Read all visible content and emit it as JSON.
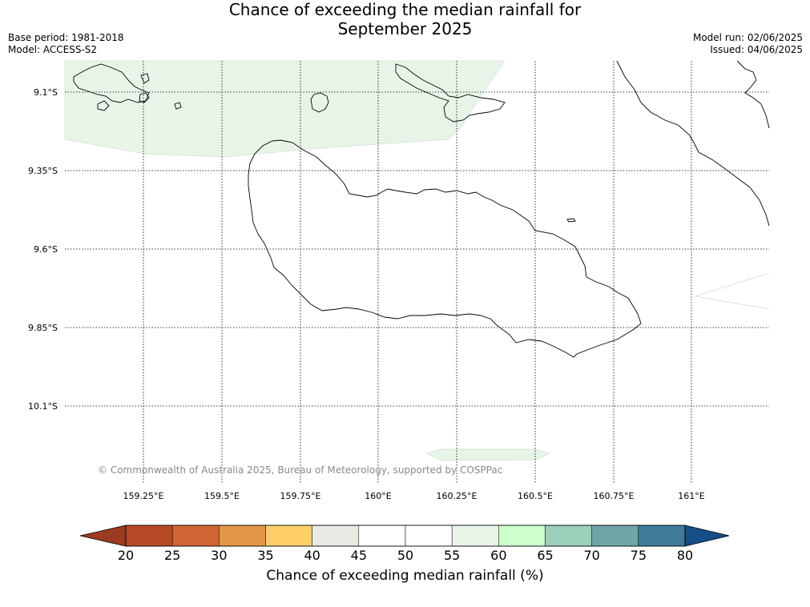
{
  "title_line1": "Chance of exceeding the median rainfall for",
  "title_line2": "September 2025",
  "base_period": "Base period: 1981-2018",
  "model": "Model: ACCESS-S2",
  "model_run": "Model run: 02/06/2025",
  "issued": "Issued: 04/06/2025",
  "copyright": "© Commonwealth of Australia 2025, Bureau of Meteorology, supported by COSPPac",
  "lat_labels": [
    "9.1°S",
    "9.35°S",
    "9.6°S",
    "9.85°S",
    "10.1°S"
  ],
  "lon_labels": [
    "159.25°E",
    "159.5°E",
    "159.75°E",
    "160°E",
    "160.25°E",
    "160.5°E",
    "160.75°E",
    "161°E"
  ],
  "colorbar": {
    "title": "Chance of exceeding median rainfall (%)",
    "ticks": [
      "20",
      "25",
      "30",
      "35",
      "40",
      "45",
      "50",
      "55",
      "60",
      "65",
      "70",
      "75",
      "80"
    ],
    "colors": [
      "#9b3c22",
      "#b64a27",
      "#cf6534",
      "#e39547",
      "#fecf68",
      "#e9e9e4",
      "#ffffff",
      "#ffffff",
      "#e9f4e8",
      "#ccffcc",
      "#9cd0bb",
      "#6fa5a7",
      "#3f7a9a",
      "#164f87"
    ]
  }
}
